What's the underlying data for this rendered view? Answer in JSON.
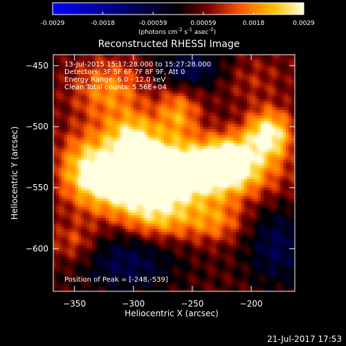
{
  "colorbar": {
    "ticks": [
      "-0.0029",
      "-0.0018",
      "-0.00059",
      "0.00059",
      "0.0018",
      "0.0029"
    ],
    "unit_pre": "(photons cm",
    "unit_exp1": "-2",
    "unit_s": " s",
    "unit_exp2": "-1",
    "unit_asec": " asec",
    "unit_exp3": "-2",
    "unit_post": ")",
    "colors": [
      "#0000ff",
      "#000000",
      "#7a0000",
      "#ff5a00",
      "#ffc000",
      "#ffffe0"
    ]
  },
  "chart_data": {
    "type": "heatmap",
    "title": "Reconstructed RHESSI Image",
    "xlabel": "Heliocentric X (arcsec)",
    "ylabel": "Heliocentric Y (arcsec)",
    "xlim": [
      -368,
      -163
    ],
    "ylim": [
      -635,
      -441
    ],
    "xticks": [
      -350,
      -300,
      -250,
      -200
    ],
    "yticks": [
      -450,
      -500,
      -550,
      -600
    ],
    "colorbar_range": [
      -0.0029,
      0.0029
    ],
    "info_lines": [
      "13-Jul-2015 15:17:28.000 to 15:27:28.000",
      "Detectors: 3F 5F 6F 7F 8F 9F, Att 0",
      "Energy Range: 6.0 - 12.0 keV",
      "Clean    Total counts: 5.56E+04"
    ],
    "peak_label": "Position of Peak = [-248,-539]",
    "peak": [
      -248,
      -539
    ],
    "sources": [
      {
        "x": -252,
        "y": -539,
        "amp": 0.0029,
        "sx": 45,
        "sy": 16
      },
      {
        "x": -280,
        "y": -537,
        "amp": 0.0022,
        "sx": 18,
        "sy": 14
      },
      {
        "x": -310,
        "y": -545,
        "amp": 0.0018,
        "sx": 22,
        "sy": 20
      },
      {
        "x": -340,
        "y": -534,
        "amp": 0.0016,
        "sx": 18,
        "sy": 22
      },
      {
        "x": -220,
        "y": -525,
        "amp": 0.0019,
        "sx": 18,
        "sy": 14
      },
      {
        "x": -185,
        "y": -506,
        "amp": 0.0025,
        "sx": 14,
        "sy": 14
      },
      {
        "x": -300,
        "y": -507,
        "amp": 0.0018,
        "sx": 16,
        "sy": 13
      },
      {
        "x": -262,
        "y": -490,
        "amp": 0.0015,
        "sx": 13,
        "sy": 16
      },
      {
        "x": -320,
        "y": -470,
        "amp": 0.0014,
        "sx": 22,
        "sy": 18
      },
      {
        "x": -278,
        "y": -574,
        "amp": 0.0017,
        "sx": 22,
        "sy": 14
      },
      {
        "x": -230,
        "y": -578,
        "amp": 0.0012,
        "sx": 18,
        "sy": 12
      },
      {
        "x": -350,
        "y": -595,
        "amp": 0.0009,
        "sx": 15,
        "sy": 12
      },
      {
        "x": -305,
        "y": -610,
        "amp": -0.0012,
        "sx": 28,
        "sy": 18
      },
      {
        "x": -250,
        "y": -453,
        "amp": -0.0014,
        "sx": 22,
        "sy": 12
      },
      {
        "x": -178,
        "y": -598,
        "amp": -0.0012,
        "sx": 18,
        "sy": 22
      },
      {
        "x": -205,
        "y": -460,
        "amp": 0.0006,
        "sx": 25,
        "sy": 14
      }
    ]
  },
  "footer": {
    "date": "21-Jul-2017 17:53"
  }
}
